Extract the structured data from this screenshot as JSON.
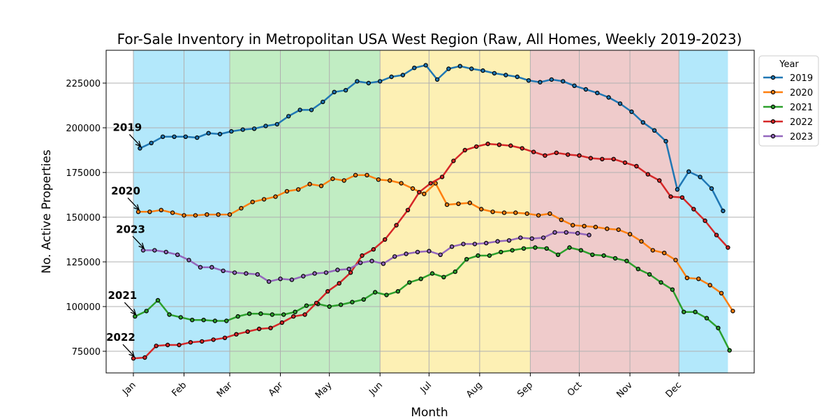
{
  "chart_data": {
    "type": "line",
    "title": "For-Sale Inventory in Metropolitan USA West Region (Raw, All Homes, Weekly 2019-2023)",
    "xlabel": "Month",
    "ylabel": "No. Active Properties",
    "x_axis": "month",
    "ylim": [
      63000,
      243000
    ],
    "yticks": [
      75000,
      100000,
      125000,
      150000,
      175000,
      200000,
      225000
    ],
    "xticks": [
      "Jan",
      "Feb",
      "Mar",
      "Apr",
      "May",
      "Jun",
      "Jul",
      "Aug",
      "Sep",
      "Oct",
      "Nov",
      "Dec"
    ],
    "grid": true,
    "legend": {
      "title": "Year",
      "placement": "upper right, outside plot"
    },
    "season_bands": [
      {
        "season": "winter",
        "range": [
          "Jan 1",
          "Mar 1"
        ],
        "color": "#b3e8fb"
      },
      {
        "season": "spring",
        "range": [
          "Mar 1",
          "Jun 1"
        ],
        "color": "#c1edc3"
      },
      {
        "season": "summer",
        "range": [
          "Jun 1",
          "Sep 1"
        ],
        "color": "#fdf0b4"
      },
      {
        "season": "fall",
        "range": [
          "Sep 1",
          "Dec 1"
        ],
        "color": "#efcbcb"
      },
      {
        "season": "winter",
        "range": [
          "Dec 1",
          "Dec 31"
        ],
        "color": "#b3e8fb"
      }
    ],
    "series": [
      {
        "name": "2019",
        "color": "#1f77b4",
        "label": "2019",
        "first_date": "Jan 5",
        "values": [
          188500,
          191500,
          195000,
          195000,
          195000,
          194500,
          197000,
          196500,
          198000,
          199000,
          199500,
          201000,
          202000,
          206500,
          210000,
          210000,
          214500,
          220000,
          221000,
          226000,
          225000,
          226000,
          228500,
          229500,
          233500,
          235000,
          227000,
          233000,
          234500,
          233000,
          232000,
          230500,
          229500,
          228500,
          226500,
          225500,
          227000,
          226000,
          223500,
          221500,
          219500,
          217000,
          213500,
          209000,
          203000,
          198500,
          192500,
          165500,
          175500,
          172500,
          166000,
          153500
        ]
      },
      {
        "name": "2020",
        "color": "#ff7f0e",
        "label": "2020",
        "first_date": "Jan 4",
        "values": [
          153000,
          153000,
          154000,
          152500,
          151000,
          151000,
          151500,
          151500,
          151500,
          155000,
          158500,
          160000,
          161500,
          164500,
          165500,
          168500,
          167500,
          171500,
          170500,
          173500,
          173500,
          171000,
          170500,
          169000,
          166000,
          163000,
          169000,
          157000,
          157500,
          158000,
          154500,
          153000,
          152500,
          152500,
          152000,
          151000,
          152000,
          148500,
          145500,
          145000,
          144500,
          143500,
          143000,
          140500,
          136500,
          131500,
          130000,
          126000,
          116000,
          115500,
          112000,
          107500,
          97500
        ]
      },
      {
        "name": "2021",
        "color": "#2ca02c",
        "label": "2021",
        "first_date": "Jan 2",
        "values": [
          94500,
          97500,
          103500,
          95500,
          94000,
          92500,
          92500,
          92000,
          92000,
          94500,
          96000,
          96000,
          95500,
          95500,
          97000,
          100500,
          101500,
          100000,
          101000,
          102500,
          104000,
          108000,
          106500,
          108500,
          113500,
          115500,
          118500,
          116500,
          119500,
          126500,
          128500,
          128500,
          130500,
          131500,
          132500,
          133000,
          132500,
          129000,
          133000,
          131500,
          129000,
          128500,
          127000,
          125500,
          121000,
          118000,
          113500,
          109500,
          97000,
          97000,
          93500,
          88000,
          75500
        ]
      },
      {
        "name": "2022",
        "color": "#d62728",
        "label": "2022",
        "first_date": "Jan 1",
        "values": [
          71000,
          71500,
          78000,
          78500,
          78500,
          80000,
          80500,
          81500,
          82500,
          84500,
          86000,
          87500,
          88000,
          91000,
          94500,
          95500,
          102000,
          108500,
          113000,
          119000,
          128500,
          132000,
          137500,
          145500,
          154000,
          164000,
          169000,
          172500,
          181500,
          187500,
          189500,
          191000,
          190500,
          190000,
          188500,
          186500,
          184500,
          186000,
          185000,
          184500,
          183000,
          182500,
          182500,
          180500,
          178500,
          174000,
          170500,
          161500,
          161000,
          154500,
          148000,
          140000,
          133000
        ]
      },
      {
        "name": "2023",
        "color": "#9467bd",
        "label": "2023",
        "first_date": "Jan 7",
        "values": [
          131500,
          131500,
          130500,
          129000,
          126000,
          122000,
          122000,
          120000,
          119000,
          118500,
          118000,
          114000,
          115500,
          115000,
          117000,
          118500,
          119000,
          120500,
          121000,
          124500,
          125500,
          124000,
          128000,
          129500,
          130500,
          131000,
          129000,
          133500,
          135000,
          135000,
          135500,
          136500,
          137000,
          138500,
          138000,
          138500,
          141500,
          141500,
          141000,
          140000
        ]
      }
    ]
  }
}
